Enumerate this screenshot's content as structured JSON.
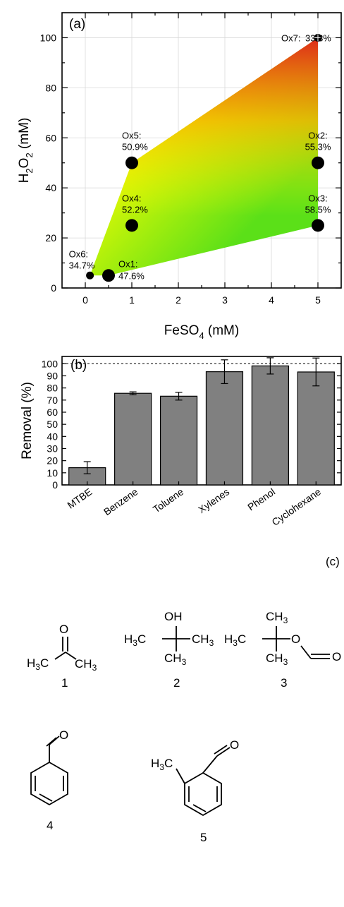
{
  "chart_data": [
    {
      "panel": "(a)",
      "type": "scatter",
      "xlabel": "FeSO4 (mM)",
      "ylabel": "H2O2 (mM)",
      "xlim": [
        -0.5,
        5.5
      ],
      "ylim": [
        0,
        110
      ],
      "xticks": [
        0,
        1,
        2,
        3,
        4,
        5
      ],
      "yticks": [
        0,
        20,
        40,
        60,
        80,
        100
      ],
      "grid": true,
      "points": [
        {
          "name": "Ox1:",
          "value": "47.6%",
          "x": 0.5,
          "y": 5,
          "size": "large"
        },
        {
          "name": "Ox2:",
          "value": "55.3%",
          "x": 5,
          "y": 50,
          "size": "large"
        },
        {
          "name": "Ox3:",
          "value": "58.5%",
          "x": 5,
          "y": 25,
          "size": "large"
        },
        {
          "name": "Ox4:",
          "value": "52.2%",
          "x": 1,
          "y": 25,
          "size": "large"
        },
        {
          "name": "Ox5:",
          "value": "50.9%",
          "x": 1,
          "y": 50,
          "size": "large"
        },
        {
          "name": "Ox6:",
          "value": "34.7%",
          "x": 0.1,
          "y": 5,
          "size": "small"
        },
        {
          "name": "Ox7:",
          "value": "33.3%",
          "x": 5,
          "y": 100,
          "size": "small"
        }
      ],
      "surface_colors": {
        "low": "#e0201a",
        "mid": "#ffff00",
        "high": "#5be018"
      }
    },
    {
      "panel": "(b)",
      "type": "bar",
      "ylabel": "Removal (%)",
      "ylim": [
        0,
        106
      ],
      "yticks": [
        0,
        10,
        20,
        30,
        40,
        50,
        60,
        70,
        80,
        90,
        100
      ],
      "reference_line": 100,
      "categories": [
        "MTBE",
        "Benzene",
        "Toluene",
        "Xylenes",
        "Phenol",
        "Cyclohexane"
      ],
      "values": [
        14.2,
        75.6,
        73.2,
        93.4,
        98.2,
        93.2
      ],
      "errors": [
        5.0,
        1.2,
        3.2,
        9.8,
        6.7,
        11.5
      ],
      "bar_color": "#808080"
    }
  ],
  "panel_c": {
    "label": "(c)",
    "compound_numbers": [
      "1",
      "2",
      "3",
      "4",
      "5"
    ],
    "atoms": {
      "o": "O",
      "oh": "OH",
      "h3c": "H",
      "ch3": "CH",
      "sub3": "3"
    }
  }
}
